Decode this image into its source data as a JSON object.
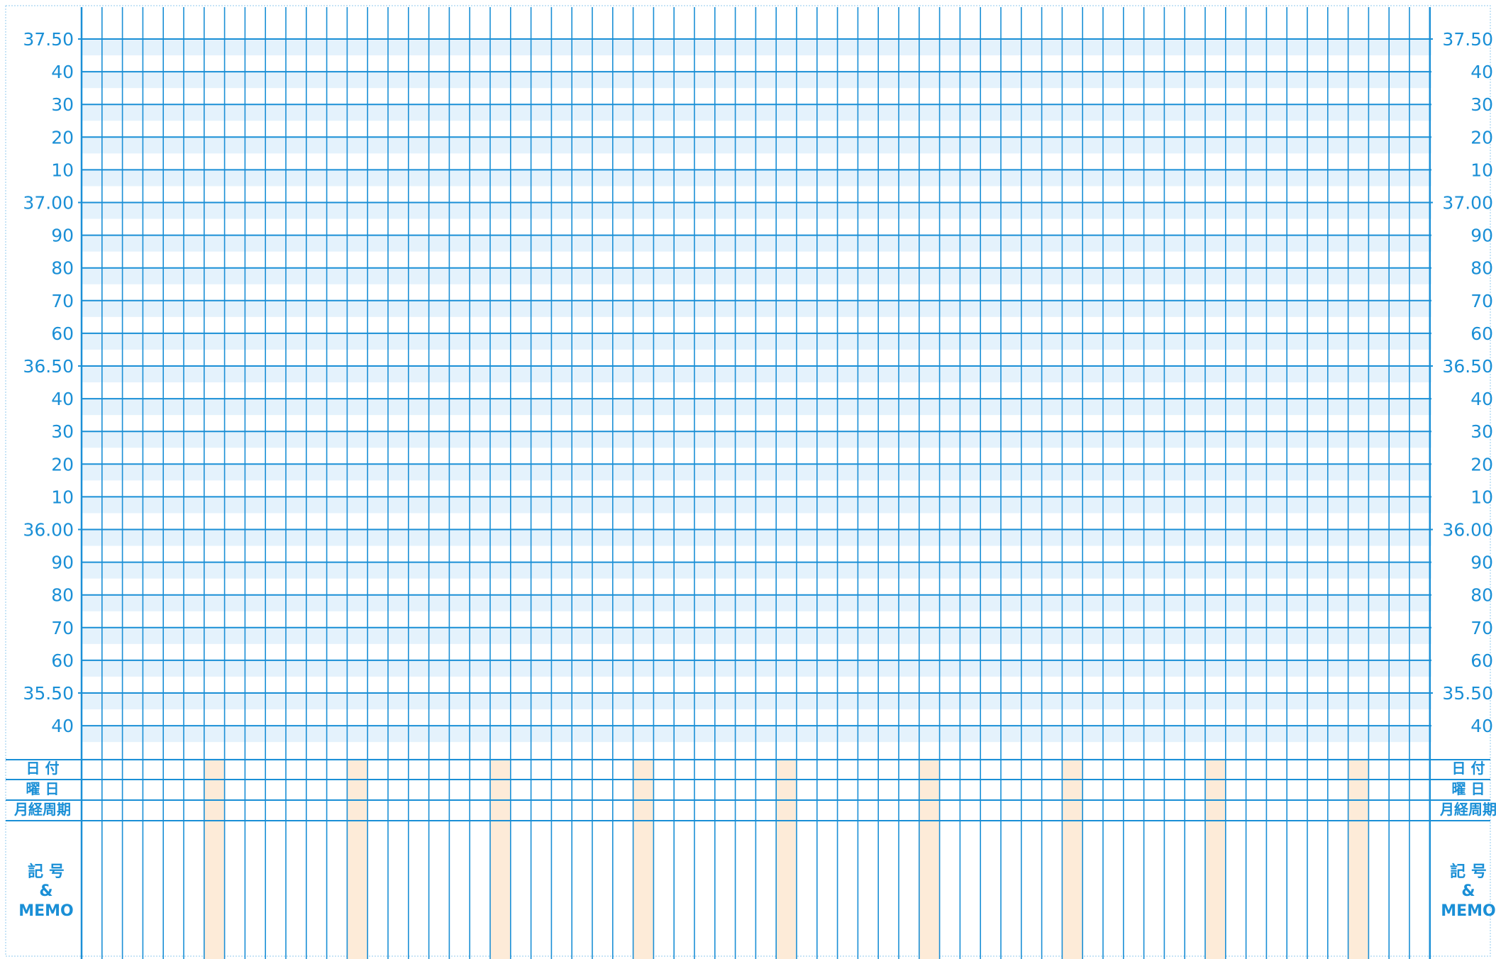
{
  "colors": {
    "line": "#1a8fd6",
    "band": "#e4f2fc",
    "weekend": "#fdebd8",
    "border": "#8fc8ec"
  },
  "scale_labels": [
    "37.50",
    "40",
    "30",
    "20",
    "10",
    "37.00",
    "90",
    "80",
    "70",
    "60",
    "36.50",
    "40",
    "30",
    "20",
    "10",
    "36.00",
    "90",
    "80",
    "70",
    "60",
    "35.50",
    "40"
  ],
  "row_labels": {
    "date": "日 付",
    "weekday": "曜 日",
    "cycle": "月経周期"
  },
  "memo_label": {
    "line1": "記 号",
    "line2": "&",
    "line3": "MEMO"
  },
  "grid": {
    "day_columns": 66,
    "highlight_every": 7,
    "highlight_offset": 6
  }
}
